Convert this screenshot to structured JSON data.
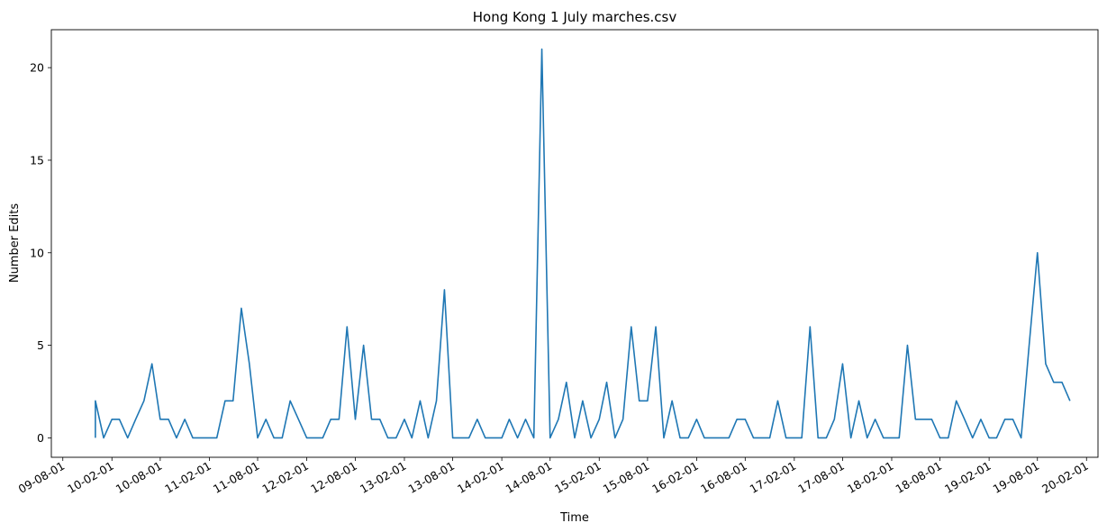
{
  "chart_data": {
    "type": "line",
    "title": "Hong Kong 1 July marches.csv",
    "xlabel": "Time",
    "ylabel": "Number Edits",
    "color": "#1f77b4",
    "grid": false,
    "legend": "none",
    "x_tick_labels": [
      "09-08-01",
      "10-02-01",
      "10-08-01",
      "11-02-01",
      "11-08-01",
      "12-02-01",
      "12-08-01",
      "13-02-01",
      "13-08-01",
      "14-02-01",
      "14-08-01",
      "15-02-01",
      "15-08-01",
      "16-02-01",
      "16-08-01",
      "17-02-01",
      "17-08-01",
      "18-02-01",
      "18-08-01",
      "19-02-01",
      "19-08-01",
      "20-02-01"
    ],
    "y_tick_labels": [
      "0",
      "5",
      "10",
      "15",
      "20"
    ],
    "ylim": [
      -1.05,
      22.05
    ],
    "xlim": [
      "2009-06-19",
      "2020-03-15"
    ],
    "series": [
      {
        "x": [
          "2009-12-01",
          "2009-12-01",
          "2010-01-01",
          "2010-02-01",
          "2010-03-01",
          "2010-04-01",
          "2010-05-01",
          "2010-06-01",
          "2010-07-01",
          "2010-08-01",
          "2010-09-01",
          "2010-10-01",
          "2010-11-01",
          "2010-12-01",
          "2011-01-01",
          "2011-02-01",
          "2011-03-01",
          "2011-04-01",
          "2011-05-01",
          "2011-06-01",
          "2011-07-01",
          "2011-08-01",
          "2011-09-01",
          "2011-10-01",
          "2011-11-01",
          "2011-12-01",
          "2012-01-01",
          "2012-02-01",
          "2012-03-01",
          "2012-04-01",
          "2012-05-01",
          "2012-06-01",
          "2012-07-01",
          "2012-08-01",
          "2012-09-01",
          "2012-10-01",
          "2012-11-01",
          "2012-12-01",
          "2013-01-01",
          "2013-02-01",
          "2013-03-01",
          "2013-04-01",
          "2013-05-01",
          "2013-06-01",
          "2013-07-01",
          "2013-08-01",
          "2013-09-01",
          "2013-10-01",
          "2013-11-01",
          "2013-12-01",
          "2014-01-01",
          "2014-02-01",
          "2014-03-01",
          "2014-04-01",
          "2014-05-01",
          "2014-06-01",
          "2014-07-01",
          "2014-08-01",
          "2014-09-01",
          "2014-10-01",
          "2014-11-01",
          "2014-12-01",
          "2015-01-01",
          "2015-02-01",
          "2015-03-01",
          "2015-04-01",
          "2015-05-01",
          "2015-06-01",
          "2015-07-01",
          "2015-08-01",
          "2015-09-01",
          "2015-10-01",
          "2015-11-01",
          "2015-12-01",
          "2016-01-01",
          "2016-02-01",
          "2016-03-01",
          "2016-04-01",
          "2016-05-01",
          "2016-06-01",
          "2016-07-01",
          "2016-08-01",
          "2016-09-01",
          "2016-10-01",
          "2016-11-01",
          "2016-12-01",
          "2017-01-01",
          "2017-02-01",
          "2017-03-01",
          "2017-04-01",
          "2017-05-01",
          "2017-06-01",
          "2017-07-01",
          "2017-08-01",
          "2017-09-01",
          "2017-10-01",
          "2017-11-01",
          "2017-12-01",
          "2018-01-01",
          "2018-02-01",
          "2018-03-01",
          "2018-04-01",
          "2018-05-01",
          "2018-06-01",
          "2018-07-01",
          "2018-08-01",
          "2018-09-01",
          "2018-10-01",
          "2018-11-01",
          "2018-12-01",
          "2019-01-01",
          "2019-02-01",
          "2019-03-01",
          "2019-04-01",
          "2019-05-01",
          "2019-06-01",
          "2019-07-01",
          "2019-08-01",
          "2019-09-01",
          "2019-10-01",
          "2019-11-01",
          "2019-12-01"
        ],
        "y": [
          0,
          2,
          0,
          1,
          1,
          0,
          1,
          2,
          4,
          1,
          1,
          0,
          1,
          0,
          0,
          0,
          0,
          2,
          2,
          7,
          4,
          0,
          1,
          0,
          0,
          2,
          1,
          0,
          0,
          0,
          1,
          1,
          6,
          1,
          5,
          1,
          1,
          0,
          0,
          1,
          0,
          2,
          0,
          2,
          8,
          0,
          0,
          0,
          1,
          0,
          0,
          0,
          1,
          0,
          1,
          0,
          21,
          0,
          1,
          3,
          0,
          2,
          0,
          1,
          3,
          0,
          1,
          6,
          2,
          2,
          6,
          0,
          2,
          0,
          0,
          1,
          0,
          0,
          0,
          0,
          1,
          1,
          0,
          0,
          0,
          2,
          0,
          0,
          0,
          6,
          0,
          0,
          1,
          4,
          0,
          2,
          0,
          1,
          0,
          0,
          0,
          5,
          1,
          1,
          1,
          0,
          0,
          2,
          1,
          0,
          1,
          0,
          0,
          1,
          1,
          0,
          5,
          10,
          4,
          3,
          3,
          2
        ]
      }
    ]
  }
}
